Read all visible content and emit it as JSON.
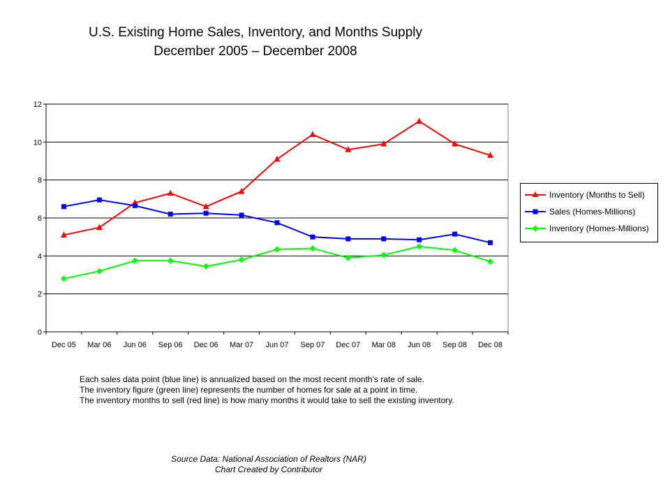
{
  "header": {
    "title_line1": "U.S. Existing Home Sales, Inventory, and Months Supply",
    "title_line2": "December 2005 – December 2008"
  },
  "notes": [
    "Each sales data point (blue line) is annualized based on the most recent month's rate of sale.",
    "The inventory figure (green line) represents the number of homes for sale at a point in time.",
    "The inventory months to sell (red line) is how many months it would take to sell the existing inventory."
  ],
  "source": {
    "line1": "Source Data: National Association of Realtors (NAR)",
    "line2": "Chart Created by Contributor"
  },
  "chart_data": {
    "type": "line",
    "title": "",
    "xlabel": "",
    "ylabel": "",
    "categories": [
      "Dec 05",
      "Mar 06",
      "Jun 06",
      "Sep 06",
      "Dec 06",
      "Mar 07",
      "Jun 07",
      "Sep 07",
      "Dec 07",
      "Mar 08",
      "Jun 08",
      "Sep 08",
      "Dec 08"
    ],
    "ylim": [
      0,
      12
    ],
    "yticks": [
      0,
      2,
      4,
      6,
      8,
      10,
      12
    ],
    "grid": true,
    "legend_position": "right",
    "series": [
      {
        "name": "Inventory (Months to Sell)",
        "color": "#ff0000",
        "marker": "triangle",
        "values": [
          5.1,
          5.5,
          6.8,
          7.3,
          6.6,
          7.4,
          9.1,
          10.4,
          9.6,
          9.9,
          11.1,
          9.9,
          9.3
        ]
      },
      {
        "name": "Sales (Homes-Millions)",
        "color": "#0000ff",
        "marker": "square",
        "values": [
          6.6,
          6.95,
          6.65,
          6.2,
          6.25,
          6.15,
          5.75,
          5.0,
          4.9,
          4.9,
          4.85,
          5.15,
          4.7
        ]
      },
      {
        "name": "Inventory (Homes-Millions)",
        "color": "#00ff00",
        "marker": "diamond",
        "values": [
          2.8,
          3.2,
          3.75,
          3.75,
          3.45,
          3.8,
          4.35,
          4.4,
          3.9,
          4.05,
          4.5,
          4.3,
          3.7
        ]
      }
    ]
  }
}
